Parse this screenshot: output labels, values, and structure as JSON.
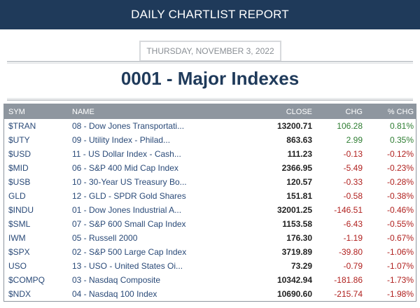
{
  "header": {
    "title": "DAILY CHARTLIST REPORT"
  },
  "date": "THURSDAY, NOVEMBER 3, 2022",
  "list_title": "0001 - Major Indexes",
  "columns": {
    "sym": "SYM",
    "name": "NAME",
    "close": "CLOSE",
    "chg": "CHG",
    "pct": "% CHG"
  },
  "colors": {
    "positive": "#2e7d32",
    "negative": "#b0201e",
    "header_bg": "#1f3a5a",
    "table_header_bg": "#8e969f"
  },
  "rows": [
    {
      "sym": "$TRAN",
      "name": "08 - Dow Jones Transportati...",
      "close": "13200.71",
      "chg": "106.28",
      "pct": "0.81%",
      "dir": "pos"
    },
    {
      "sym": "$UTY",
      "name": "09 - Utility Index - Philad...",
      "close": "863.63",
      "chg": "2.99",
      "pct": "0.35%",
      "dir": "pos"
    },
    {
      "sym": "$USD",
      "name": "11 - US Dollar Index - Cash...",
      "close": "111.23",
      "chg": "-0.13",
      "pct": "-0.12%",
      "dir": "neg"
    },
    {
      "sym": "$MID",
      "name": "06 - S&P 400 Mid Cap Index",
      "close": "2366.95",
      "chg": "-5.49",
      "pct": "-0.23%",
      "dir": "neg"
    },
    {
      "sym": "$USB",
      "name": "10 - 30-Year US Treasury Bo...",
      "close": "120.57",
      "chg": "-0.33",
      "pct": "-0.28%",
      "dir": "neg"
    },
    {
      "sym": "GLD",
      "name": "12 - GLD - SPDR Gold Shares",
      "close": "151.81",
      "chg": "-0.58",
      "pct": "-0.38%",
      "dir": "neg"
    },
    {
      "sym": "$INDU",
      "name": "01 - Dow Jones Industrial A...",
      "close": "32001.25",
      "chg": "-146.51",
      "pct": "-0.46%",
      "dir": "neg"
    },
    {
      "sym": "$SML",
      "name": "07 - S&P 600 Small Cap Index",
      "close": "1153.58",
      "chg": "-6.43",
      "pct": "-0.55%",
      "dir": "neg"
    },
    {
      "sym": "IWM",
      "name": "05 - Russell 2000",
      "close": "176.30",
      "chg": "-1.19",
      "pct": "-0.67%",
      "dir": "neg"
    },
    {
      "sym": "$SPX",
      "name": "02 - S&P 500 Large Cap Index",
      "close": "3719.89",
      "chg": "-39.80",
      "pct": "-1.06%",
      "dir": "neg"
    },
    {
      "sym": "USO",
      "name": "13 - USO - United States Oi...",
      "close": "73.29",
      "chg": "-0.79",
      "pct": "-1.07%",
      "dir": "neg"
    },
    {
      "sym": "$COMPQ",
      "name": "03 - Nasdaq Composite",
      "close": "10342.94",
      "chg": "-181.86",
      "pct": "-1.73%",
      "dir": "neg"
    },
    {
      "sym": "$NDX",
      "name": "04 - Nasdaq 100 Index",
      "close": "10690.60",
      "chg": "-215.74",
      "pct": "-1.98%",
      "dir": "neg"
    }
  ]
}
